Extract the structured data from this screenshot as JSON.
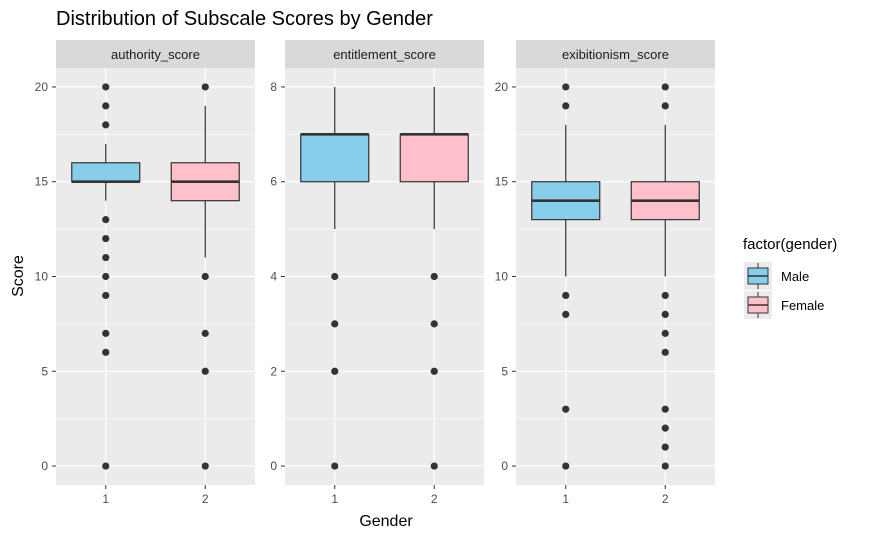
{
  "chart_data": {
    "type": "boxplot",
    "title": "Distribution of Subscale Scores by Gender",
    "xlabel": "Gender",
    "ylabel": "Score",
    "categories": [
      "1",
      "2"
    ],
    "legend": {
      "title": "factor(gender)",
      "position": "right",
      "items": [
        {
          "label": "Male",
          "color": "#87CEEB"
        },
        {
          "label": "Female",
          "color": "#FFC0CB"
        }
      ]
    },
    "grid": true,
    "panels": [
      {
        "name": "authority_score",
        "ylim": [
          -1,
          21
        ],
        "yticks": [
          0,
          5,
          10,
          15,
          20
        ],
        "boxes": [
          {
            "category": "1",
            "min": 14,
            "q1": 15,
            "median": 15,
            "q3": 16,
            "max": 17,
            "outliers": [
              20,
              19,
              18,
              13,
              12,
              11,
              10,
              9,
              7,
              6,
              0
            ]
          },
          {
            "category": "2",
            "min": 11,
            "q1": 14,
            "median": 15,
            "q3": 16,
            "max": 19,
            "outliers": [
              20,
              10,
              7,
              5,
              0
            ]
          }
        ]
      },
      {
        "name": "entitlement_score",
        "ylim": [
          -0.4,
          8.4
        ],
        "yticks": [
          0,
          2,
          4,
          6,
          8
        ],
        "boxes": [
          {
            "category": "1",
            "min": 5,
            "q1": 6,
            "median": 7,
            "q3": 7,
            "max": 8,
            "outliers": [
              4,
              3,
              2,
              0
            ]
          },
          {
            "category": "2",
            "min": 5,
            "q1": 6,
            "median": 7,
            "q3": 7,
            "max": 8,
            "outliers": [
              4,
              3,
              2,
              0
            ]
          }
        ]
      },
      {
        "name": "exibitionism_score",
        "ylim": [
          -1,
          21
        ],
        "yticks": [
          0,
          5,
          10,
          15,
          20
        ],
        "boxes": [
          {
            "category": "1",
            "min": 10,
            "q1": 13,
            "median": 14,
            "q3": 15,
            "max": 18,
            "outliers": [
              20,
              19,
              9,
              8,
              3,
              0
            ]
          },
          {
            "category": "2",
            "min": 10,
            "q1": 13,
            "median": 14,
            "q3": 15,
            "max": 18,
            "outliers": [
              20,
              19,
              9,
              8,
              7,
              6,
              3,
              2,
              1,
              0
            ]
          }
        ]
      }
    ]
  }
}
